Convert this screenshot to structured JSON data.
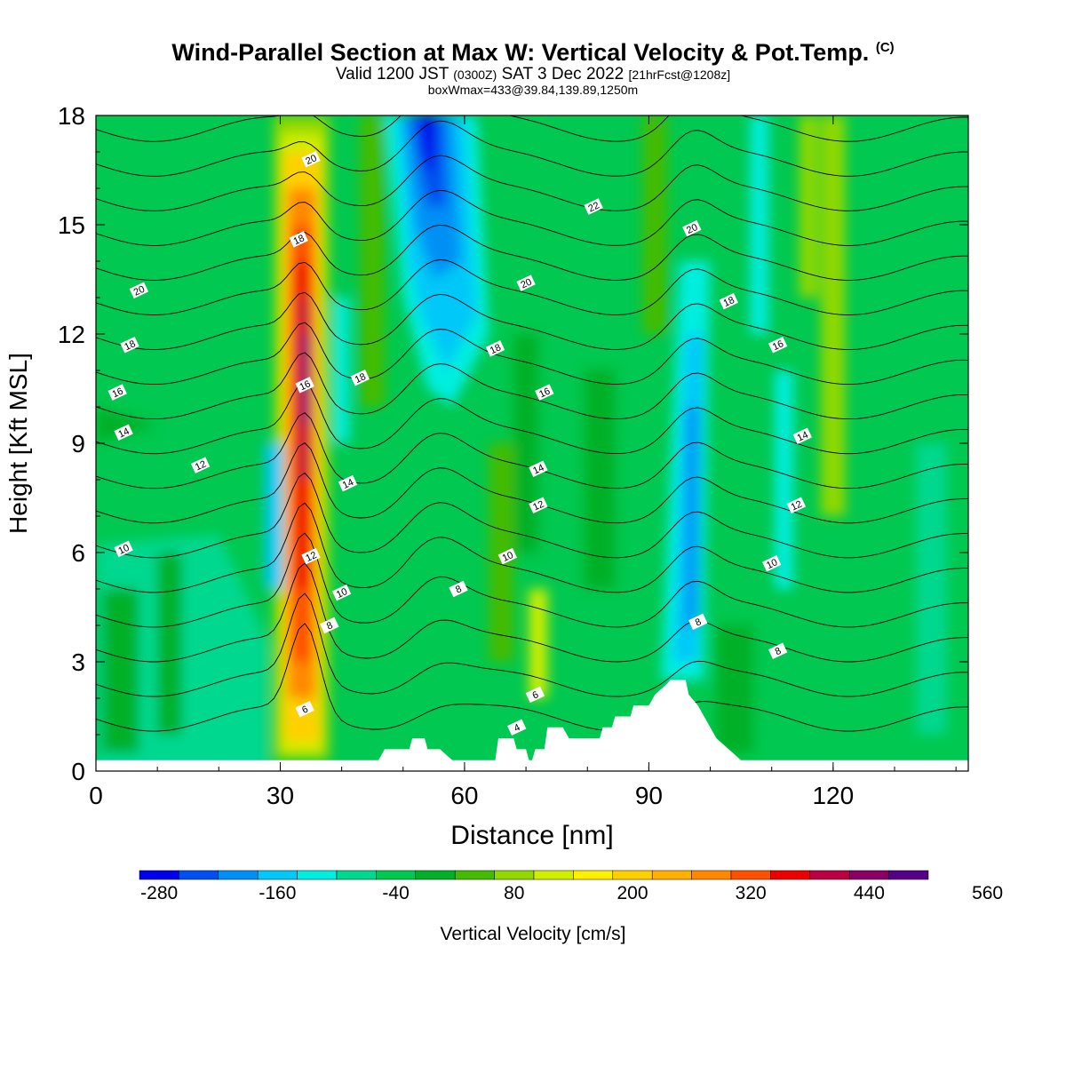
{
  "header": {
    "title": "Wind-Parallel Section at Max W: Vertical Velocity & Pot.Temp.",
    "copyright": "(C)",
    "valid_prefix": "Valid 1200 JST",
    "valid_utc": "(0300Z)",
    "valid_date": "SAT 3 Dec 2022",
    "forecast": "[21hrFcst@1208z]",
    "box_info": "boxWmax=433@39.84,139.89,1250m"
  },
  "colors": {
    "scale": [
      "#0000ee",
      "#0050f0",
      "#0090f5",
      "#00c8f8",
      "#00eee0",
      "#00d890",
      "#00c850",
      "#00b028",
      "#44bb00",
      "#90d800",
      "#d0ee00",
      "#fff000",
      "#ffd000",
      "#ffb000",
      "#ff8800",
      "#ff5000",
      "#ee0000",
      "#bb0044",
      "#880066",
      "#550088"
    ],
    "terrain": "#ffffff",
    "contour": "#000000"
  },
  "chart_data": {
    "type": "heatmap",
    "xlabel": "Distance [nm]",
    "ylabel": "Height [Kft MSL]",
    "xlim": [
      0,
      142
    ],
    "ylim": [
      0,
      18
    ],
    "x_ticks": [
      "0",
      "30",
      "60",
      "90",
      "120"
    ],
    "y_ticks": [
      "0",
      "3",
      "6",
      "9",
      "12",
      "15",
      "18"
    ],
    "colorbar": {
      "label": "Vertical Velocity [cm/s]",
      "ticks": [
        "-280",
        "-160",
        "-40",
        "80",
        "200",
        "320",
        "440",
        "560"
      ],
      "levels": [
        -300,
        -260,
        -220,
        -180,
        -140,
        -100,
        -60,
        -20,
        20,
        60,
        100,
        140,
        180,
        220,
        260,
        300,
        340,
        380,
        420,
        460,
        500
      ]
    },
    "terrain_profile": [
      [
        0,
        0.3
      ],
      [
        46,
        0.3
      ],
      [
        47,
        0.6
      ],
      [
        51,
        0.6
      ],
      [
        51.5,
        0.9
      ],
      [
        53.5,
        0.9
      ],
      [
        54,
        0.6
      ],
      [
        56,
        0.6
      ],
      [
        58,
        0.3
      ],
      [
        65,
        0.3
      ],
      [
        65.5,
        0.9
      ],
      [
        68,
        0.9
      ],
      [
        68.5,
        0.6
      ],
      [
        70,
        0.6
      ],
      [
        70.5,
        0.3
      ],
      [
        71,
        0.3
      ],
      [
        71.5,
        0.6
      ],
      [
        73,
        0.6
      ],
      [
        73.5,
        1.2
      ],
      [
        76,
        1.2
      ],
      [
        77,
        0.9
      ],
      [
        82,
        0.9
      ],
      [
        82.5,
        1.2
      ],
      [
        84,
        1.2
      ],
      [
        84.5,
        1.5
      ],
      [
        87,
        1.5
      ],
      [
        87.5,
        1.8
      ],
      [
        90,
        1.8
      ],
      [
        91,
        2.1
      ],
      [
        93,
        2.4
      ],
      [
        93.5,
        2.5
      ],
      [
        96,
        2.5
      ],
      [
        96.5,
        2.1
      ],
      [
        98,
        1.8
      ],
      [
        99,
        1.5
      ],
      [
        100,
        1.2
      ],
      [
        101,
        0.9
      ],
      [
        103,
        0.6
      ],
      [
        105,
        0.3
      ],
      [
        142,
        0.3
      ]
    ],
    "potential_temperature_labels": [
      {
        "x": 35,
        "y": 16.8,
        "v": "20"
      },
      {
        "x": 33,
        "y": 14.6,
        "v": "18"
      },
      {
        "x": 34,
        "y": 10.6,
        "v": "16"
      },
      {
        "x": 7,
        "y": 13.2,
        "v": "20"
      },
      {
        "x": 5.5,
        "y": 11.7,
        "v": "18"
      },
      {
        "x": 3.5,
        "y": 10.4,
        "v": "16"
      },
      {
        "x": 4.5,
        "y": 9.3,
        "v": "14"
      },
      {
        "x": 17,
        "y": 8.4,
        "v": "12"
      },
      {
        "x": 4.5,
        "y": 6.1,
        "v": "10"
      },
      {
        "x": 43,
        "y": 10.8,
        "v": "18"
      },
      {
        "x": 41,
        "y": 7.9,
        "v": "14"
      },
      {
        "x": 35,
        "y": 5.9,
        "v": "12"
      },
      {
        "x": 40,
        "y": 4.9,
        "v": "10"
      },
      {
        "x": 38,
        "y": 4.0,
        "v": "8"
      },
      {
        "x": 34,
        "y": 1.7,
        "v": "6"
      },
      {
        "x": 81,
        "y": 15.5,
        "v": "22"
      },
      {
        "x": 97,
        "y": 14.9,
        "v": "20"
      },
      {
        "x": 70,
        "y": 13.4,
        "v": "20"
      },
      {
        "x": 65,
        "y": 11.6,
        "v": "18"
      },
      {
        "x": 73,
        "y": 10.4,
        "v": "16"
      },
      {
        "x": 103,
        "y": 12.9,
        "v": "18"
      },
      {
        "x": 111,
        "y": 11.7,
        "v": "16"
      },
      {
        "x": 115,
        "y": 9.2,
        "v": "14"
      },
      {
        "x": 72,
        "y": 8.3,
        "v": "14"
      },
      {
        "x": 72,
        "y": 7.3,
        "v": "12"
      },
      {
        "x": 114,
        "y": 7.3,
        "v": "12"
      },
      {
        "x": 67,
        "y": 5.9,
        "v": "10"
      },
      {
        "x": 110,
        "y": 5.7,
        "v": "10"
      },
      {
        "x": 59,
        "y": 5.0,
        "v": "8"
      },
      {
        "x": 98,
        "y": 4.1,
        "v": "8"
      },
      {
        "x": 111,
        "y": 3.3,
        "v": "8"
      },
      {
        "x": 71.5,
        "y": 2.1,
        "v": "6"
      },
      {
        "x": 68.5,
        "y": 1.2,
        "v": "4"
      }
    ]
  }
}
